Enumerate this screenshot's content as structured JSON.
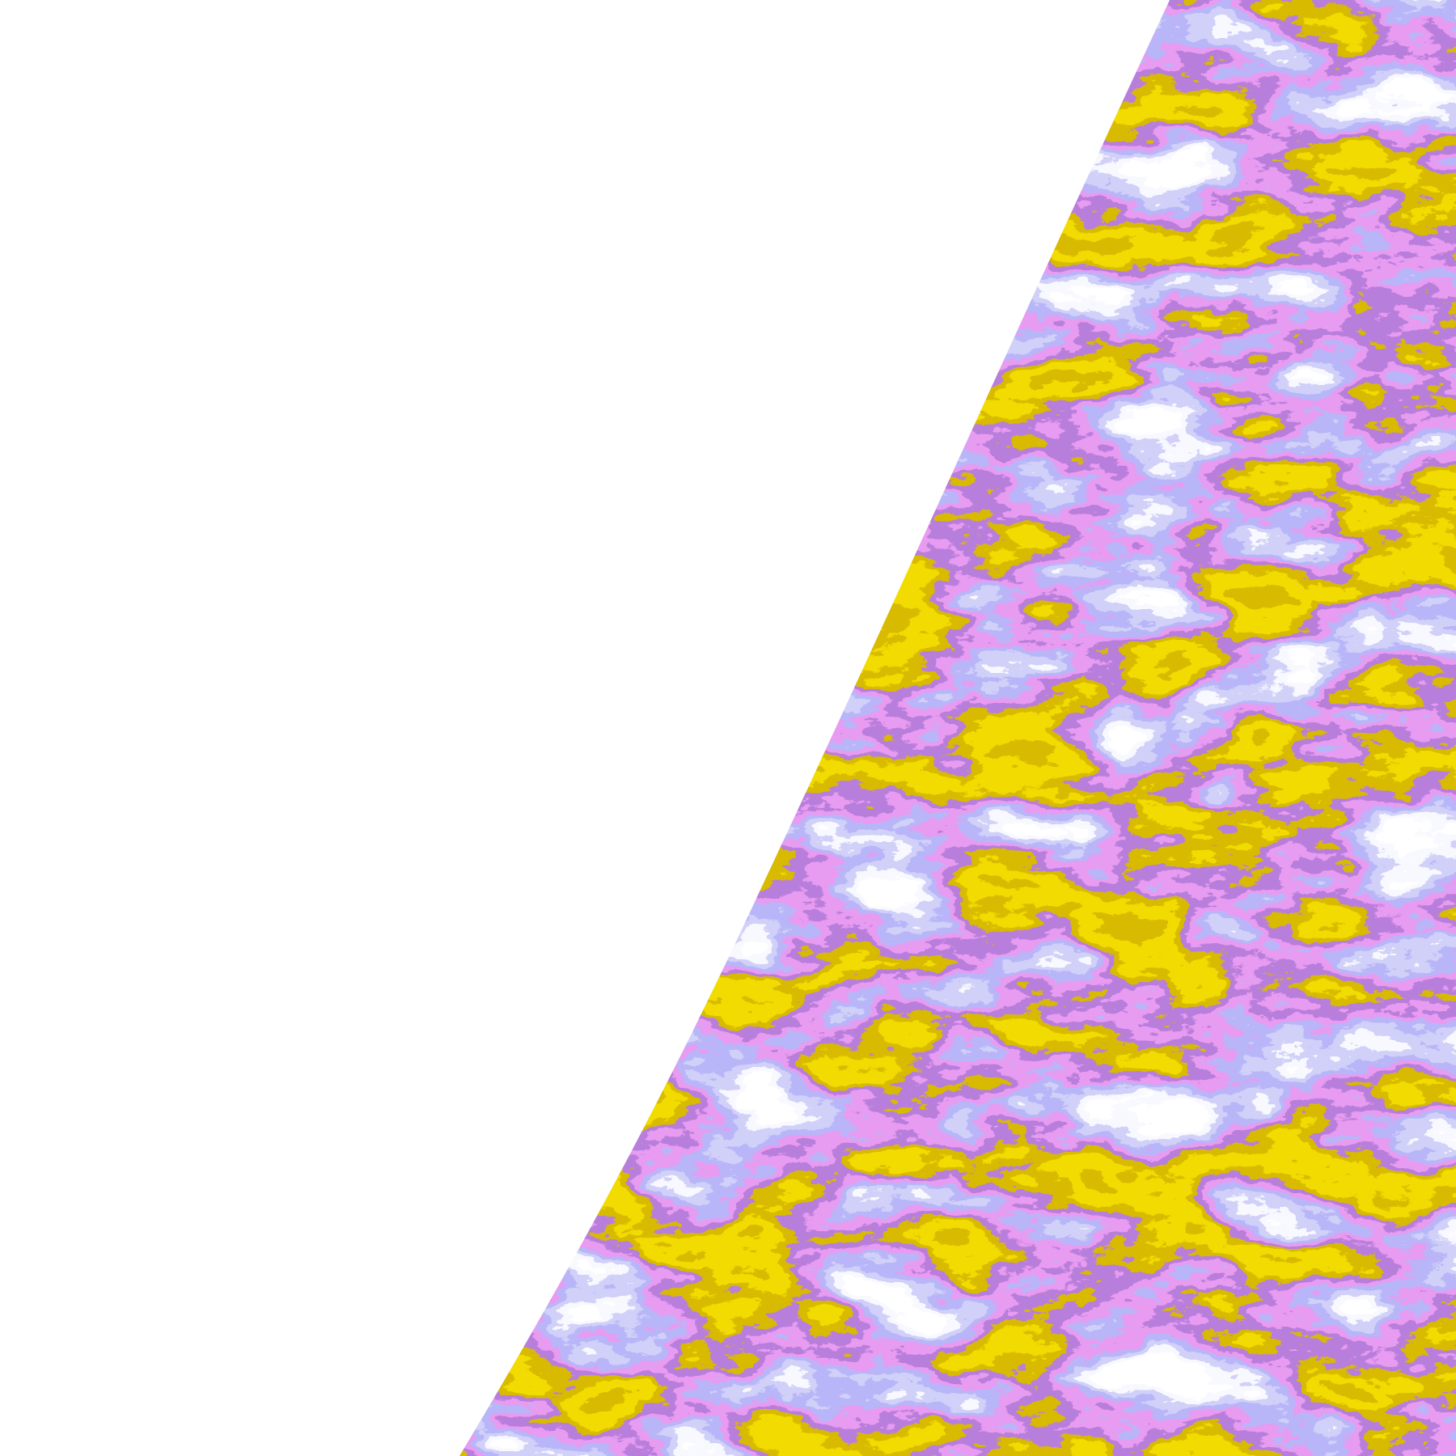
{
  "image": {
    "kind": "false-color classified satellite disk view",
    "background_color": "#ffffff",
    "palette": {
      "clear": "#ffffff",
      "pale_lavender": "#f0f0ff",
      "light_blue_gray": "#a0a0f0",
      "blue_violet": "#7a78f0",
      "magenta": "#cc55e0",
      "purple": "#7b35b5",
      "dark_gold": "#b08000",
      "gold": "#e0b400"
    }
  }
}
